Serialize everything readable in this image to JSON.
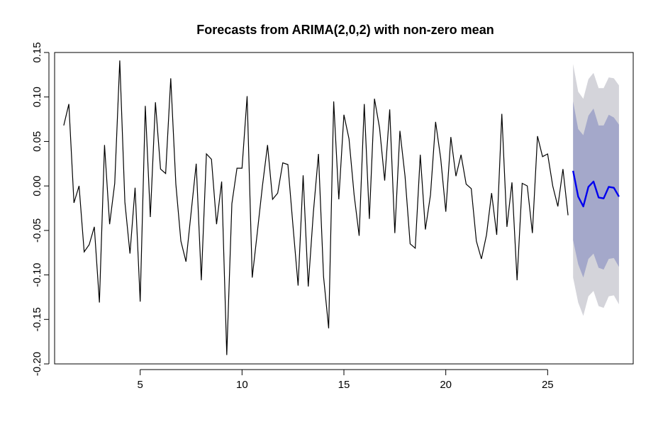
{
  "chart_data": {
    "type": "line",
    "title": "Forecasts from ARIMA(2,0,2) with non-zero mean",
    "xlabel": "",
    "ylabel": "",
    "xlim": [
      0.8,
      29.2
    ],
    "ylim": [
      -0.2,
      0.15
    ],
    "x_ticks": [
      5,
      10,
      15,
      20,
      25
    ],
    "y_ticks": [
      -0.2,
      -0.15,
      -0.1,
      -0.05,
      0.0,
      0.05,
      0.1,
      0.15
    ],
    "y_tick_labels": [
      "-0.20",
      "-0.15",
      "-0.10",
      "-0.05",
      "0.00",
      "0.05",
      "0.10",
      "0.15"
    ],
    "grid": false,
    "legend": "none",
    "series": [
      {
        "role": "observed",
        "color": "#000000",
        "x_start": 1.25,
        "x_step": 0.25,
        "values": [
          0.068,
          0.092,
          -0.019,
          0.0,
          -0.074,
          -0.066,
          -0.046,
          -0.131,
          0.046,
          -0.043,
          0.003,
          0.141,
          -0.018,
          -0.076,
          -0.002,
          -0.13,
          0.09,
          -0.035,
          0.094,
          0.019,
          0.014,
          0.121,
          0.002,
          -0.062,
          -0.085,
          -0.03,
          0.025,
          -0.106,
          0.036,
          0.03,
          -0.043,
          0.005,
          -0.19,
          -0.02,
          0.02,
          0.02,
          0.101,
          -0.103,
          -0.052,
          0.0,
          0.046,
          -0.015,
          -0.008,
          0.026,
          0.024,
          -0.045,
          -0.112,
          0.012,
          -0.113,
          -0.03,
          0.036,
          -0.102,
          -0.16,
          0.095,
          -0.015,
          0.08,
          0.053,
          -0.01,
          -0.056,
          0.092,
          -0.037,
          0.098,
          0.065,
          0.006,
          0.086,
          -0.053,
          0.062,
          0.011,
          -0.065,
          -0.07,
          0.035,
          -0.049,
          -0.01,
          0.072,
          0.031,
          -0.029,
          0.055,
          0.011,
          0.035,
          0.002,
          -0.003,
          -0.062,
          -0.082,
          -0.055,
          -0.008,
          -0.055,
          0.081,
          -0.046,
          0.004,
          -0.106,
          0.003,
          0.0,
          -0.053,
          0.056,
          0.033,
          0.036,
          0.0,
          -0.023,
          0.019,
          -0.033
        ]
      },
      {
        "role": "forecast",
        "color": "#0000ee",
        "x_start": 26.25,
        "x_step": 0.25,
        "values": [
          0.017,
          -0.012,
          -0.023,
          -0.001,
          0.005,
          -0.013,
          -0.014,
          -0.001,
          -0.002,
          -0.012
        ],
        "interval_80": {
          "color": "#a4a8ca",
          "lower": [
            -0.061,
            -0.088,
            -0.103,
            -0.082,
            -0.076,
            -0.092,
            -0.094,
            -0.082,
            -0.081,
            -0.091
          ],
          "upper": [
            0.095,
            0.064,
            0.057,
            0.079,
            0.087,
            0.068,
            0.068,
            0.08,
            0.077,
            0.069
          ]
        },
        "interval_95": {
          "color": "#d4d4da",
          "lower": [
            -0.103,
            -0.131,
            -0.146,
            -0.124,
            -0.118,
            -0.135,
            -0.137,
            -0.124,
            -0.123,
            -0.133
          ],
          "upper": [
            0.137,
            0.106,
            0.098,
            0.12,
            0.127,
            0.11,
            0.11,
            0.122,
            0.121,
            0.113
          ]
        }
      }
    ]
  }
}
